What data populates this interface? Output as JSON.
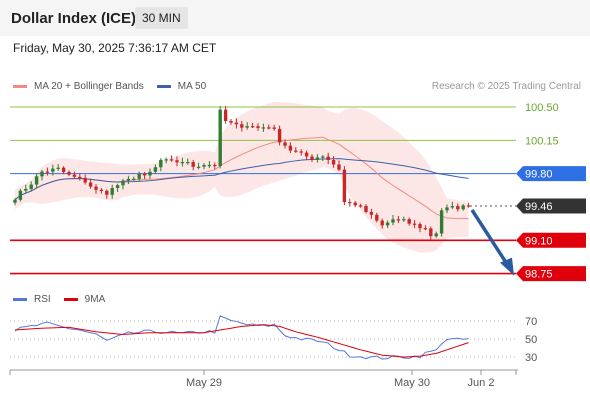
{
  "header": {
    "title": "Dollar Index (ICE)",
    "interval": "30 MIN",
    "timestamp": "Friday, May 30, 2025 7:36:17 AM CET"
  },
  "legend": {
    "ma20_label": "MA 20 + Bollinger Bands",
    "ma50_label": "MA 50",
    "credit": "Research © 2025 Trading Central",
    "rsi_label": "RSI",
    "ma9_label": "9MA"
  },
  "colors": {
    "bull": "#2e7d32",
    "bear": "#c62828",
    "ma20": "#f28b82",
    "ma50": "#3f5fa8",
    "bands": "#fde0e0",
    "resistance": "#8bc34a",
    "support": "#e0000b",
    "pivot": "#2f6fe6",
    "current": "#333333",
    "rsi": "#5577dd",
    "forecast": "#2c5aa0"
  },
  "chart_data": {
    "type": "candlestick",
    "x_ticks": [
      "May 29",
      "May 30",
      "Jun 2"
    ],
    "levels": [
      {
        "value": 100.5,
        "label": "100.50",
        "type": "resistance"
      },
      {
        "value": 100.15,
        "label": "100.15",
        "type": "resistance"
      },
      {
        "value": 99.8,
        "label": "99.80",
        "type": "pivot"
      },
      {
        "value": 99.46,
        "label": "99.46",
        "type": "current"
      },
      {
        "value": 99.1,
        "label": "99.10",
        "type": "support"
      },
      {
        "value": 98.75,
        "label": "98.75",
        "type": "support"
      }
    ],
    "price_anchors": [
      [
        0,
        99.55
      ],
      [
        3,
        99.7
      ],
      [
        5,
        99.82
      ],
      [
        8,
        99.85
      ],
      [
        10,
        99.78
      ],
      [
        13,
        99.72
      ],
      [
        15,
        99.62
      ],
      [
        17,
        99.6
      ],
      [
        19,
        99.68
      ],
      [
        21,
        99.73
      ],
      [
        23,
        99.8
      ],
      [
        24,
        99.76
      ],
      [
        26,
        99.86
      ],
      [
        27,
        99.94
      ],
      [
        29,
        99.92
      ],
      [
        31,
        99.93
      ],
      [
        33,
        99.88
      ],
      [
        35,
        99.9
      ],
      [
        37,
        99.89
      ],
      [
        38,
        100.45
      ],
      [
        39,
        100.35
      ],
      [
        41,
        100.3
      ],
      [
        43,
        100.31
      ],
      [
        45,
        100.28
      ],
      [
        47,
        100.3
      ],
      [
        48,
        100.25
      ],
      [
        49,
        100.15
      ],
      [
        51,
        100.05
      ],
      [
        53,
        100.0
      ],
      [
        55,
        99.96
      ],
      [
        57,
        99.99
      ],
      [
        58,
        99.95
      ],
      [
        60,
        99.85
      ],
      [
        61,
        99.5
      ],
      [
        63,
        99.48
      ],
      [
        65,
        99.4
      ],
      [
        67,
        99.3
      ],
      [
        68,
        99.25
      ],
      [
        70,
        99.32
      ],
      [
        72,
        99.3
      ],
      [
        74,
        99.26
      ],
      [
        76,
        99.22
      ],
      [
        77,
        99.15
      ],
      [
        78,
        99.18
      ],
      [
        79,
        99.42
      ],
      [
        81,
        99.44
      ],
      [
        83,
        99.45
      ],
      [
        84,
        99.46
      ]
    ],
    "forecast": {
      "from": 99.46,
      "to": 98.75
    },
    "rsi": {
      "ticks": [
        70,
        50,
        30
      ],
      "anchors": [
        [
          0,
          60
        ],
        [
          3,
          64
        ],
        [
          6,
          67
        ],
        [
          9,
          63
        ],
        [
          12,
          60
        ],
        [
          15,
          55
        ],
        [
          17,
          48
        ],
        [
          19,
          52
        ],
        [
          21,
          56
        ],
        [
          24,
          58
        ],
        [
          27,
          58
        ],
        [
          31,
          56
        ],
        [
          35,
          58
        ],
        [
          37,
          58
        ],
        [
          38,
          74
        ],
        [
          40,
          70
        ],
        [
          43,
          66
        ],
        [
          46,
          64
        ],
        [
          48,
          66
        ],
        [
          50,
          54
        ],
        [
          53,
          50
        ],
        [
          56,
          48
        ],
        [
          58,
          44
        ],
        [
          60,
          38
        ],
        [
          62,
          32
        ],
        [
          65,
          30
        ],
        [
          68,
          29
        ],
        [
          71,
          30
        ],
        [
          73,
          30
        ],
        [
          75,
          31
        ],
        [
          76,
          34
        ],
        [
          77,
          36
        ],
        [
          78,
          37
        ],
        [
          79,
          46
        ],
        [
          80,
          50
        ],
        [
          82,
          49
        ],
        [
          84,
          50
        ]
      ],
      "ma9_anchors": [
        [
          0,
          60
        ],
        [
          5,
          62
        ],
        [
          10,
          63
        ],
        [
          15,
          58
        ],
        [
          20,
          55
        ],
        [
          25,
          57
        ],
        [
          30,
          57
        ],
        [
          35,
          57
        ],
        [
          38,
          60
        ],
        [
          42,
          64
        ],
        [
          46,
          66
        ],
        [
          49,
          64
        ],
        [
          52,
          58
        ],
        [
          56,
          52
        ],
        [
          60,
          45
        ],
        [
          64,
          38
        ],
        [
          68,
          32
        ],
        [
          72,
          30
        ],
        [
          75,
          31
        ],
        [
          78,
          34
        ],
        [
          81,
          40
        ],
        [
          84,
          46
        ]
      ]
    }
  }
}
